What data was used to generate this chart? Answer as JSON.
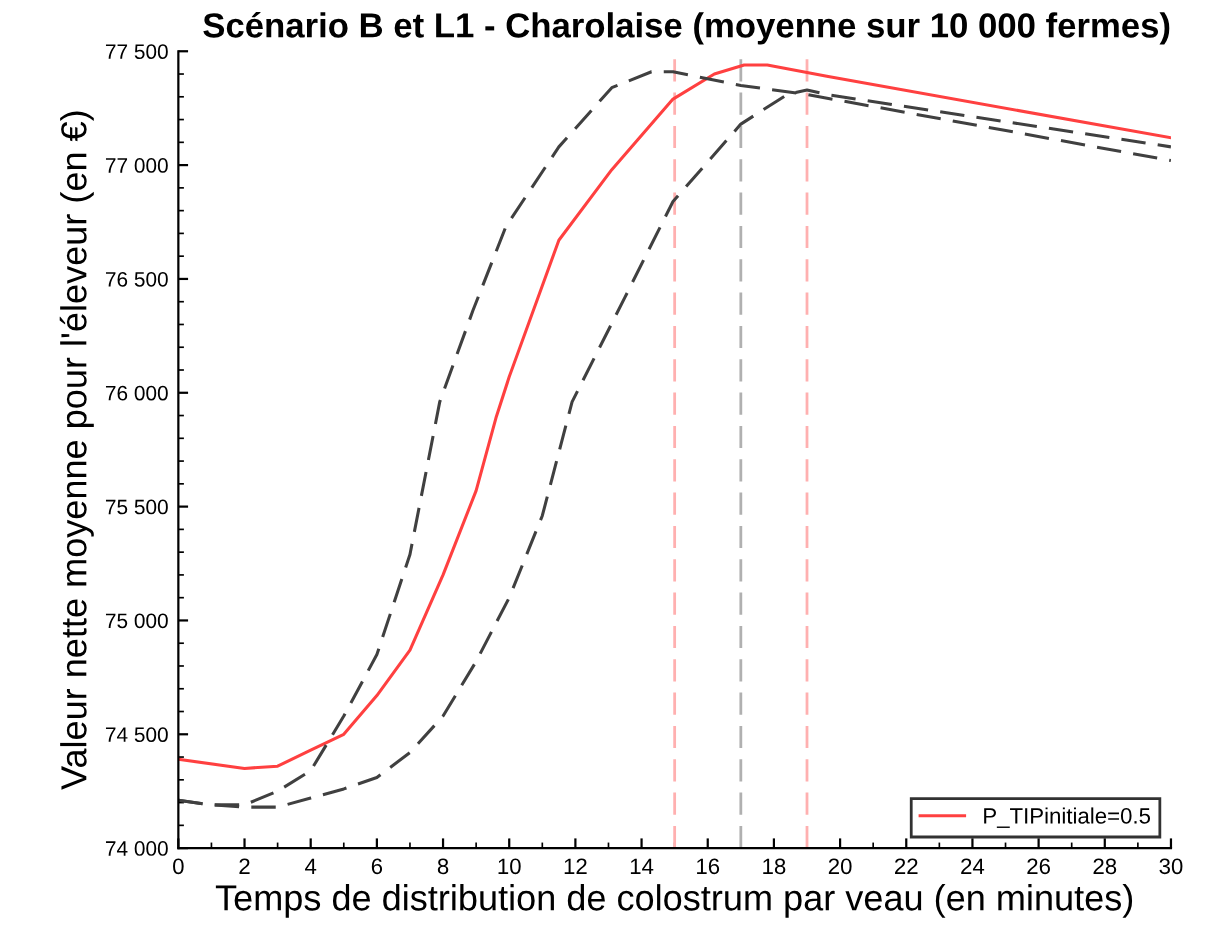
{
  "chart_data": {
    "type": "line",
    "title": "Scénario B et L1 - Charolaise (moyenne sur 10 000 fermes)",
    "xlabel": "Temps de distribution de colostrum par veau (en minutes)",
    "ylabel": "Valeur nette moyenne pour l'éleveur (en €)",
    "xlim": [
      0,
      30
    ],
    "xticks": [
      0,
      2,
      4,
      6,
      8,
      10,
      12,
      14,
      16,
      18,
      20,
      22,
      24,
      26,
      28,
      30
    ],
    "ylim": [
      74000,
      77500
    ],
    "yticks": [
      {
        "value": 74000,
        "label": "74 000"
      },
      {
        "value": 74500,
        "label": "74 500"
      },
      {
        "value": 75000,
        "label": "75 000"
      },
      {
        "value": 75500,
        "label": "75 500"
      },
      {
        "value": 76000,
        "label": "76 000"
      },
      {
        "value": 76500,
        "label": "76 500"
      },
      {
        "value": 77000,
        "label": "77 000"
      },
      {
        "value": 77500,
        "label": "77 500"
      }
    ],
    "grid": false,
    "legend": "bottom right",
    "marker": "none",
    "series": [
      {
        "name": "P_TIPinitiale=0.5",
        "color": "#ff4040",
        "line_style": "solid",
        "x": [
          0,
          2,
          3,
          4,
          5,
          6,
          7,
          8,
          9,
          9.6,
          10,
          11.5,
          13.1,
          14.95,
          16.2,
          17.1,
          17.8,
          19.6,
          30
        ],
        "values": [
          74390,
          74350,
          74360,
          74430,
          74500,
          74670,
          74870,
          75200,
          75570,
          75890,
          76070,
          76670,
          76980,
          77290,
          77400,
          77440,
          77440,
          77390,
          77120
        ]
      },
      {
        "color": "#404040",
        "line_style": "dashed",
        "x": [
          0,
          1,
          2,
          3,
          4,
          5,
          6,
          7,
          7.9,
          8.9,
          9.9,
          11.5,
          13.1,
          14.3,
          14.95,
          17,
          19,
          30
        ],
        "values": [
          74210,
          74190,
          74190,
          74250,
          74340,
          74580,
          74850,
          75290,
          75960,
          76360,
          76730,
          77080,
          77340,
          77410,
          77410,
          77350,
          77310,
          77020
        ]
      },
      {
        "color": "#404040",
        "line_style": "dashed",
        "x": [
          0,
          1,
          2,
          3,
          4,
          5,
          6,
          7,
          8,
          9,
          10,
          11,
          11.9,
          13.5,
          14.95,
          17,
          18.4,
          19,
          19.6,
          30
        ],
        "values": [
          74210,
          74190,
          74180,
          74180,
          74220,
          74260,
          74310,
          74420,
          74580,
          74820,
          75100,
          75460,
          75960,
          76420,
          76840,
          77180,
          77310,
          77330,
          77310,
          77080
        ]
      }
    ],
    "ref_lines": [
      {
        "axis": "x",
        "value": 15,
        "color": "#ffb0b0",
        "line_style": "dashed"
      },
      {
        "axis": "x",
        "value": 17,
        "color": "#b0b0b0",
        "line_style": "dashed"
      },
      {
        "axis": "x",
        "value": 19,
        "color": "#ffb0b0",
        "line_style": "dashed"
      }
    ]
  }
}
